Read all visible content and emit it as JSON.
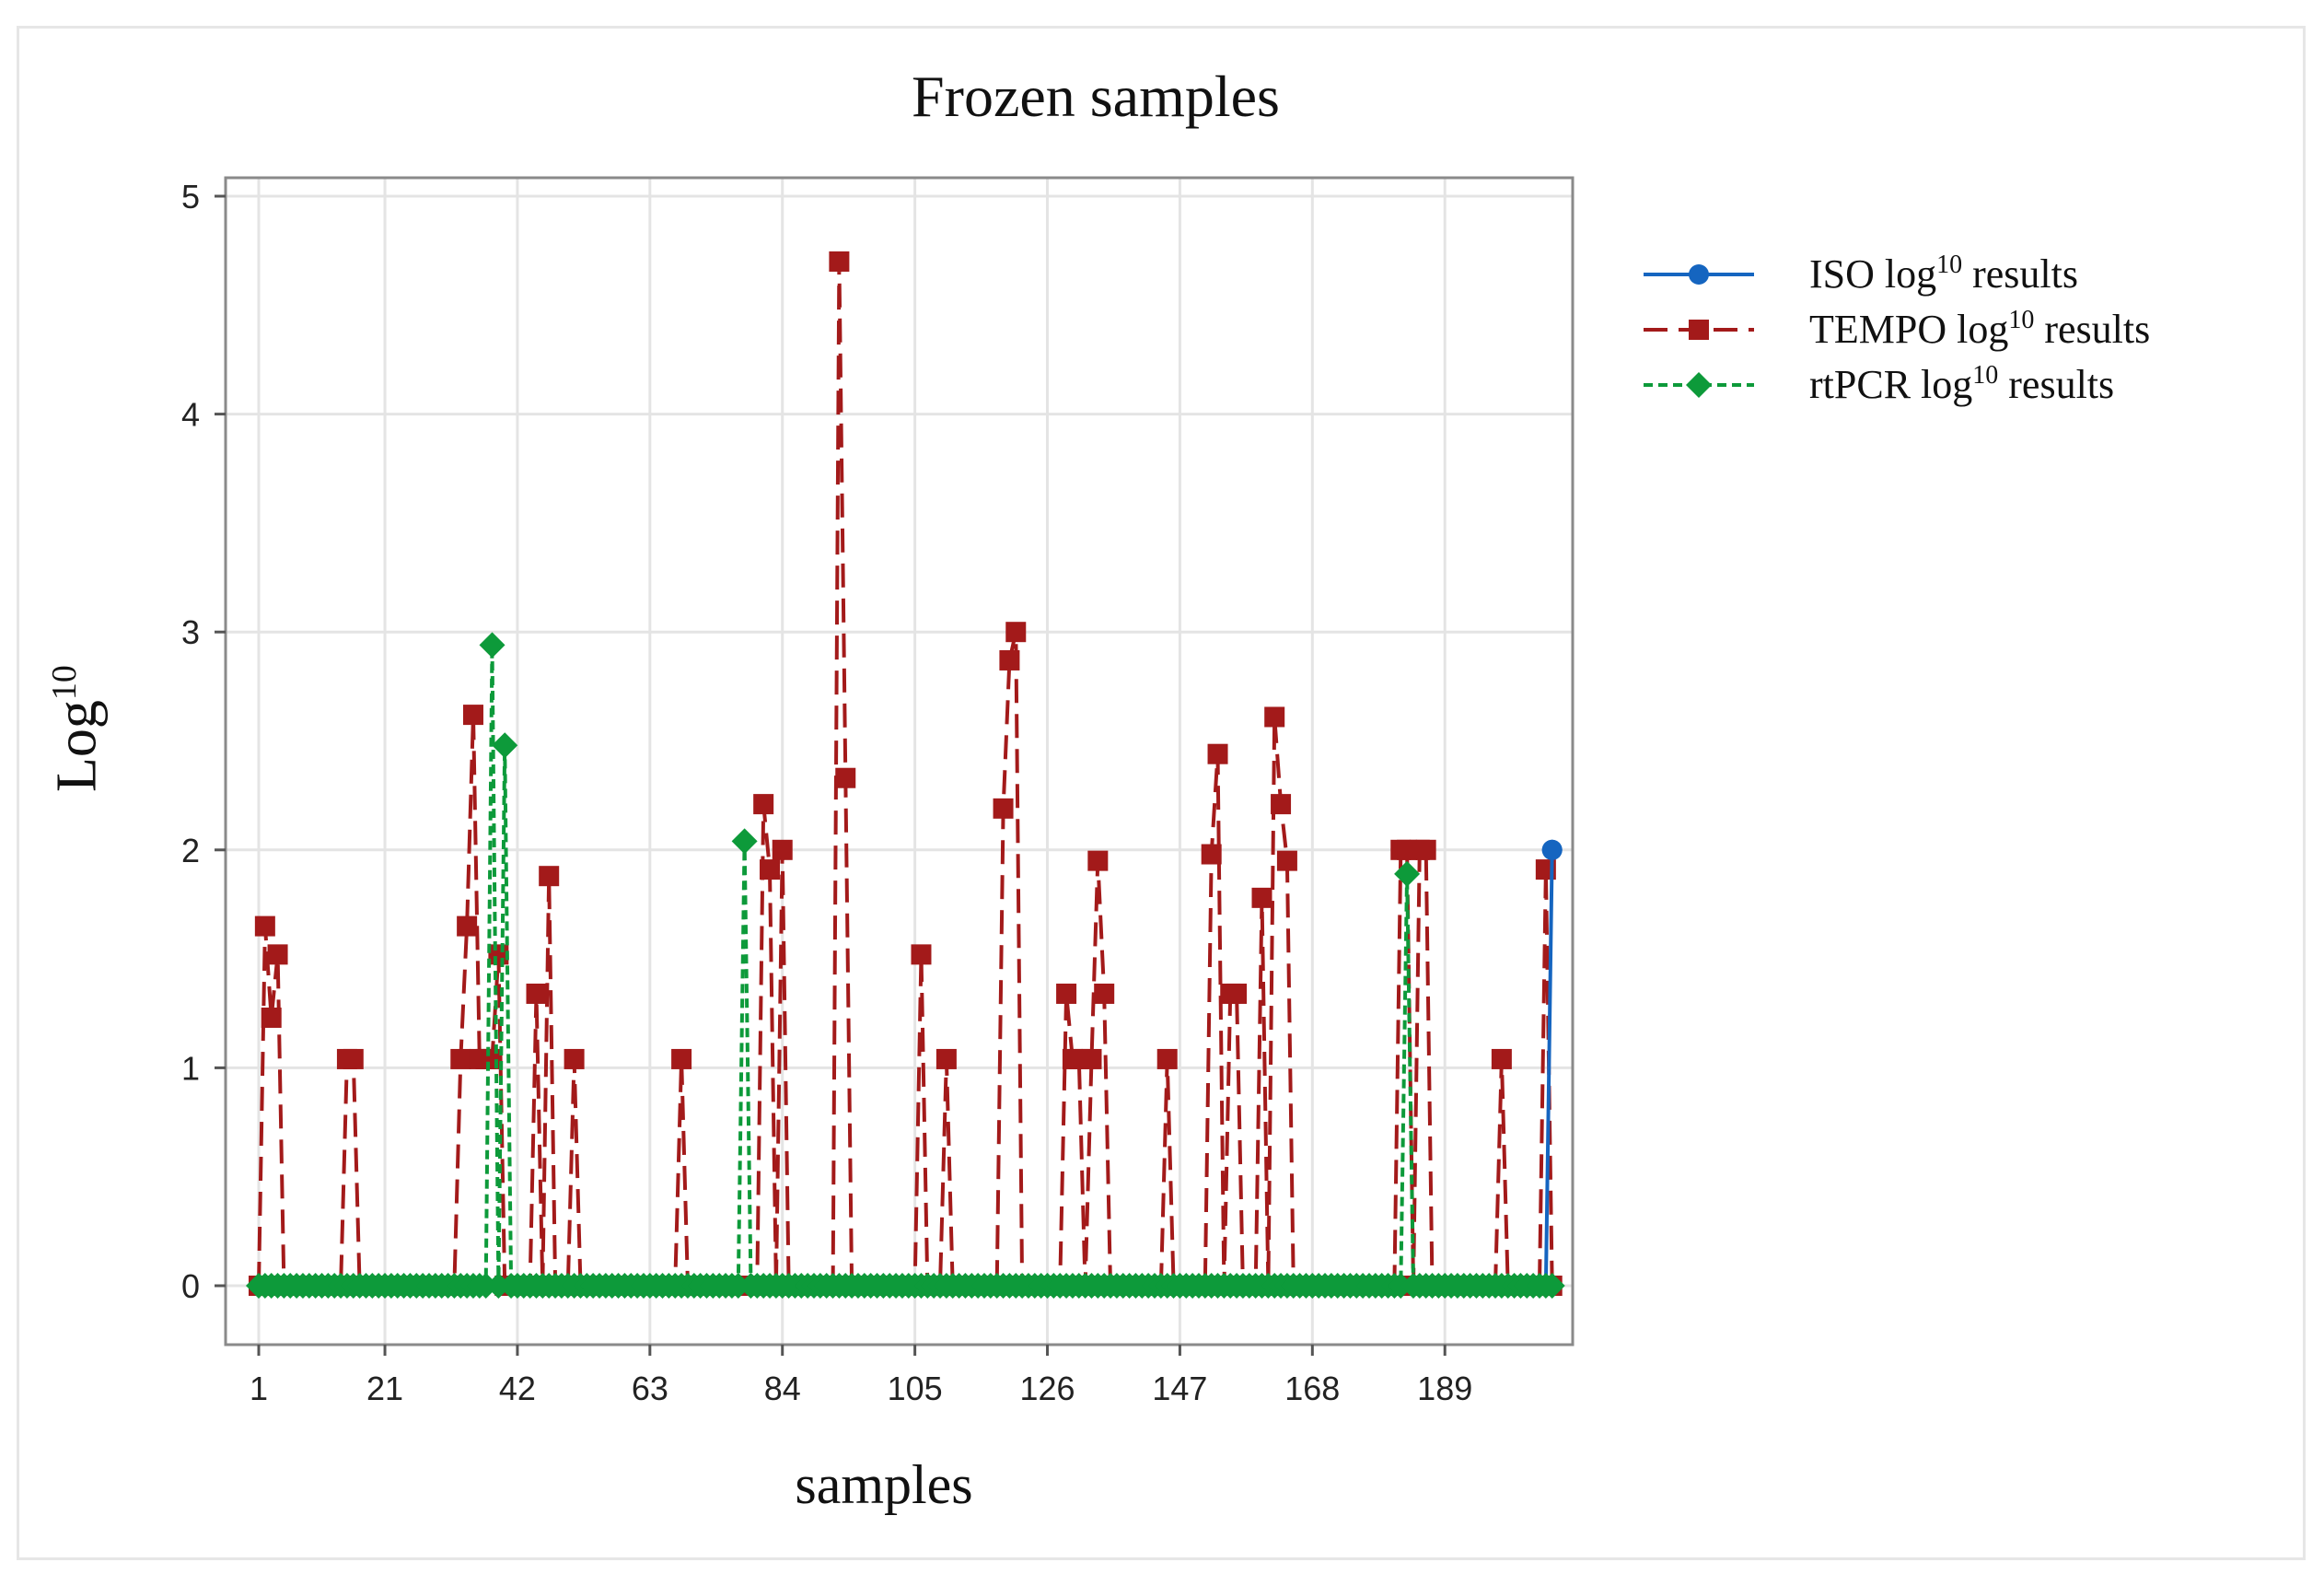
{
  "chart_data": {
    "type": "line",
    "title": "Frozen samples",
    "xlabel": "samples",
    "ylabel": "Log",
    "ylabel_sup": "10",
    "xlim": [
      1,
      204
    ],
    "ylim": [
      -0.2,
      5.1
    ],
    "x_ticks": [
      1,
      21,
      42,
      63,
      84,
      105,
      126,
      147,
      168,
      189
    ],
    "y_ticks": [
      0,
      1,
      2,
      3,
      4,
      5
    ],
    "grid": true,
    "legend_position": "right",
    "legend": [
      {
        "label": "ISO log",
        "sup": "10",
        "suffix": " results",
        "series": "iso"
      },
      {
        "label": "TEMPO log",
        "sup": "10",
        "suffix": " results",
        "series": "tempo"
      },
      {
        "label": "rtPCR log",
        "sup": "10",
        "suffix": " results",
        "series": "rtpcr"
      }
    ],
    "series": [
      {
        "id": "iso",
        "color": "#1565c0",
        "marker": "circle",
        "line_style": "solid",
        "n": 206,
        "nonzero": [
          [
            206,
            2.0
          ]
        ]
      },
      {
        "id": "tempo",
        "color": "#a31a1a",
        "marker": "square",
        "line_style": "dashed",
        "n": 206,
        "nonzero": [
          [
            2,
            1.65
          ],
          [
            3,
            1.23
          ],
          [
            4,
            1.52
          ],
          [
            15,
            1.04
          ],
          [
            16,
            1.04
          ],
          [
            33,
            1.04
          ],
          [
            34,
            1.65
          ],
          [
            35,
            2.62
          ],
          [
            36,
            1.04
          ],
          [
            37,
            1.04
          ],
          [
            38,
            1.04
          ],
          [
            39,
            1.52
          ],
          [
            45,
            1.34
          ],
          [
            47,
            1.88
          ],
          [
            51,
            1.04
          ],
          [
            68,
            1.04
          ],
          [
            81,
            2.21
          ],
          [
            82,
            1.91
          ],
          [
            84,
            2.0
          ],
          [
            93,
            4.7
          ],
          [
            94,
            2.33
          ],
          [
            106,
            1.52
          ],
          [
            110,
            1.04
          ],
          [
            119,
            2.19
          ],
          [
            120,
            2.87
          ],
          [
            121,
            3.0
          ],
          [
            129,
            1.34
          ],
          [
            130,
            1.04
          ],
          [
            131,
            1.04
          ],
          [
            133,
            1.04
          ],
          [
            134,
            1.95
          ],
          [
            135,
            1.34
          ],
          [
            145,
            1.04
          ],
          [
            152,
            1.98
          ],
          [
            153,
            2.44
          ],
          [
            155,
            1.34
          ],
          [
            156,
            1.34
          ],
          [
            160,
            1.78
          ],
          [
            162,
            2.61
          ],
          [
            163,
            2.21
          ],
          [
            164,
            1.95
          ],
          [
            182,
            2.0
          ],
          [
            183,
            2.0
          ],
          [
            185,
            2.0
          ],
          [
            186,
            2.0
          ],
          [
            198,
            1.04
          ],
          [
            205,
            1.91
          ]
        ]
      },
      {
        "id": "rtpcr",
        "color": "#0d9a3a",
        "marker": "diamond",
        "line_style": "dotted",
        "n": 206,
        "nonzero": [
          [
            38,
            2.94
          ],
          [
            40,
            2.48
          ],
          [
            78,
            2.04
          ],
          [
            183,
            1.89
          ]
        ]
      }
    ]
  }
}
